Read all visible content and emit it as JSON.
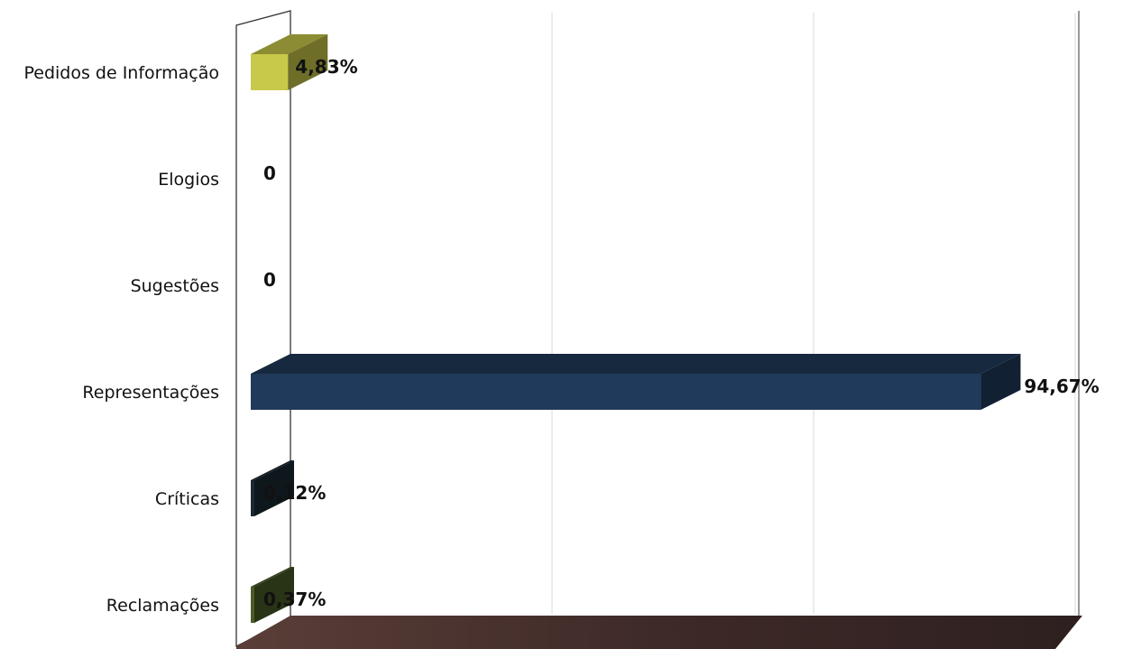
{
  "chart_data": {
    "type": "bar",
    "orientation": "horizontal",
    "style": "3d",
    "categories": [
      "Pedidos de Informação",
      "Elogios",
      "Sugestões",
      "Representações",
      "Críticas",
      "Reclamações"
    ],
    "values": [
      4.83,
      0,
      0,
      94.67,
      0.12,
      0.37
    ],
    "value_labels": [
      "4,83%",
      "0",
      "0",
      "94,67%",
      "0,12%",
      "0,37%"
    ],
    "bar_colors": [
      "#c8c84a",
      "#c8c84a",
      "#c8c84a",
      "#1f3a5a",
      "#1a2a32",
      "#4a5c28"
    ],
    "xlim": [
      0,
      100
    ],
    "grid": true,
    "legend": "none",
    "floor_color": "#3a2a28"
  }
}
